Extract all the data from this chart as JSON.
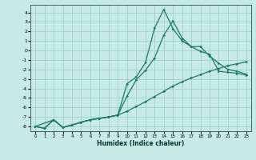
{
  "xlabel": "Humidex (Indice chaleur)",
  "bg_color": "#c8eae4",
  "grid_color": "#a0d0c8",
  "line_color": "#1a7a6a",
  "xlim": [
    -0.5,
    23.5
  ],
  "ylim": [
    -8.5,
    4.8
  ],
  "xticks": [
    0,
    1,
    2,
    3,
    4,
    5,
    6,
    7,
    8,
    9,
    10,
    11,
    12,
    13,
    14,
    15,
    16,
    17,
    18,
    19,
    20,
    21,
    22,
    23
  ],
  "yticks": [
    -8,
    -7,
    -6,
    -5,
    -4,
    -3,
    -2,
    -1,
    0,
    1,
    2,
    3,
    4
  ],
  "line1_x": [
    0,
    1,
    2,
    3,
    4,
    5,
    6,
    7,
    8,
    9,
    10,
    11,
    12,
    13,
    14,
    15,
    16,
    17,
    18,
    19,
    20,
    21,
    22,
    23
  ],
  "line1_y": [
    -8.0,
    -8.2,
    -7.3,
    -8.1,
    -7.85,
    -7.55,
    -7.3,
    -7.15,
    -7.0,
    -6.8,
    -6.4,
    -5.9,
    -5.4,
    -4.85,
    -4.3,
    -3.75,
    -3.3,
    -2.9,
    -2.55,
    -2.2,
    -1.9,
    -1.6,
    -1.4,
    -1.2
  ],
  "line2_x": [
    0,
    1,
    2,
    3,
    4,
    5,
    6,
    7,
    8,
    9,
    10,
    11,
    12,
    13,
    14,
    15,
    16,
    17,
    18,
    19,
    20,
    21,
    22,
    23
  ],
  "line2_y": [
    -8.0,
    -8.2,
    -7.3,
    -8.1,
    -7.85,
    -7.55,
    -7.3,
    -7.15,
    -7.0,
    -6.8,
    -3.5,
    -2.8,
    -1.3,
    2.35,
    4.3,
    2.3,
    1.0,
    0.4,
    0.4,
    -0.6,
    -1.35,
    -2.0,
    -2.2,
    -2.5
  ],
  "line3_x": [
    0,
    2,
    3,
    4,
    5,
    6,
    7,
    8,
    9,
    10,
    11,
    12,
    13,
    14,
    15,
    16,
    17,
    18,
    19,
    20,
    21,
    22,
    23
  ],
  "line3_y": [
    -8.0,
    -7.3,
    -8.1,
    -7.85,
    -7.55,
    -7.3,
    -7.15,
    -7.0,
    -6.8,
    -4.8,
    -3.1,
    -2.1,
    -0.8,
    1.6,
    3.1,
    1.3,
    0.4,
    -0.1,
    -0.4,
    -2.2,
    -2.3,
    -2.4,
    -2.6
  ]
}
